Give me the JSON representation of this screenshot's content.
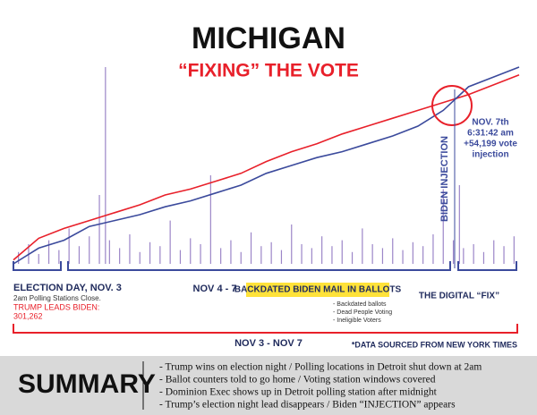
{
  "chart_data": {
    "type": "line",
    "title": "MICHIGAN",
    "subtitle": "“FIXING” THE VOTE",
    "x": [
      0,
      5,
      10,
      15,
      20,
      25,
      30,
      35,
      40,
      45,
      50,
      55,
      60,
      65,
      70,
      75,
      80,
      85,
      90,
      95,
      100
    ],
    "xlim": [
      0,
      100
    ],
    "ylim": [
      0,
      100
    ],
    "series": [
      {
        "color": "#e8202a",
        "values": [
          2,
          13,
          18,
          22,
          26,
          30,
          35,
          38,
          42,
          46,
          52,
          57,
          61,
          66,
          70,
          74,
          78,
          82,
          86,
          91,
          96
        ]
      },
      {
        "color": "#3b4a9c",
        "values": [
          0,
          8,
          12,
          19,
          22,
          25,
          29,
          32,
          36,
          40,
          46,
          50,
          54,
          57,
          61,
          65,
          70,
          78,
          90,
          95,
          100
        ]
      }
    ],
    "spikes": {
      "color": "#9c86c8",
      "x": [
        1,
        3,
        5,
        7,
        9,
        11,
        13,
        15,
        17,
        18.2,
        19,
        21,
        23,
        25,
        27,
        29,
        31,
        33,
        35,
        37,
        39,
        41,
        43,
        45,
        47,
        49,
        51,
        53,
        55,
        57,
        59,
        61,
        63,
        65,
        67,
        69,
        71,
        73,
        75,
        77,
        79,
        81,
        83,
        85,
        87,
        88.2,
        89,
        91,
        93,
        95,
        97,
        99
      ],
      "values": [
        6,
        10,
        5,
        12,
        7,
        18,
        9,
        14,
        35,
        100,
        12,
        8,
        15,
        6,
        11,
        9,
        22,
        7,
        13,
        10,
        45,
        8,
        12,
        6,
        16,
        9,
        11,
        7,
        20,
        10,
        8,
        14,
        9,
        12,
        6,
        18,
        10,
        8,
        13,
        7,
        11,
        9,
        15,
        38,
        12,
        40,
        8,
        10,
        6,
        12,
        9,
        14
      ]
    },
    "annotations": {
      "biden_injection": "BIDEN INJECTION",
      "injection_note": [
        "NOV. 7th",
        "6:31:42 am",
        "+54,199 vote",
        "injection"
      ],
      "election_day": "ELECTION DAY, NOV. 3",
      "polling_close": "2am Polling Stations Close.",
      "trump_leads": "TRUMP LEADS BIDEN:",
      "lead_margin": "301,262",
      "nov_4_7": "NOV 4 - 7",
      "backdated": "BACKDATED BIDEN MAIL IN BALLOTS",
      "backdated_items": [
        "- Backdated ballots",
        "- Dead People Voting",
        "- Ineligible Voters"
      ],
      "digital_fix": "THE DIGITAL “FIX”",
      "nov_3_7": "NOV 3 - NOV 7",
      "source": "*DATA SOURCED FROM NEW YORK TIMES"
    }
  },
  "summary": {
    "heading": "SUMMARY",
    "items": [
      "- Trump wins on election night / Polling locations in Detroit shut down at 2am",
      "- Ballot counters told to go home / Voting station windows covered",
      "- Dominion Exec shows up in Detroit polling station after midnight",
      "- Trump’s election night lead disappears / Biden “INJECTION” appears"
    ]
  }
}
